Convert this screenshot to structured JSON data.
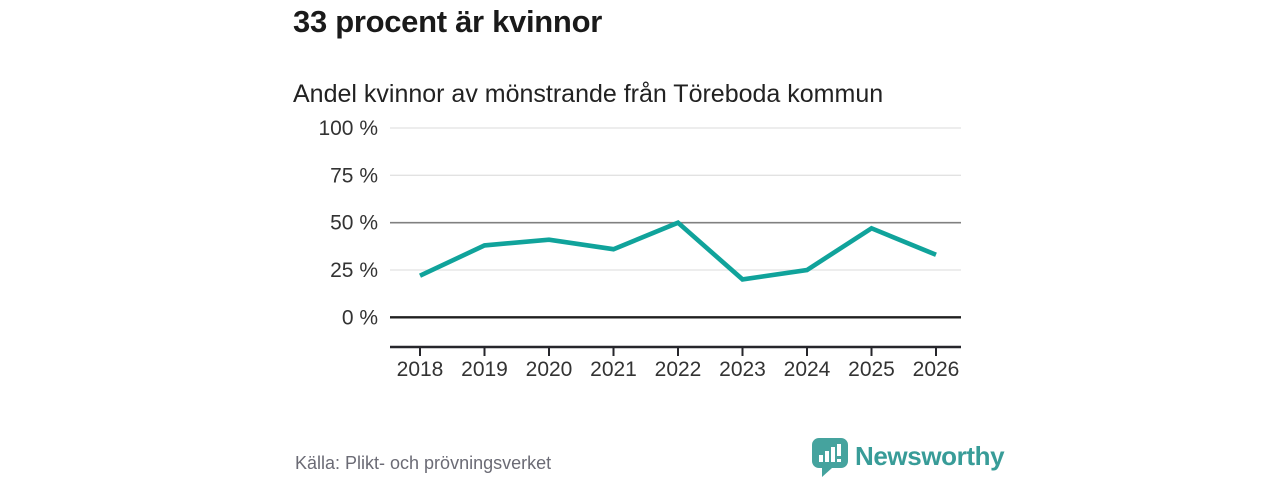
{
  "header": {
    "title": "33 procent är kvinnor",
    "subtitle": "Andel kvinnor av mönstrande från Töreboda kommun"
  },
  "chart_data": {
    "type": "line",
    "categories": [
      "2018",
      "2019",
      "2020",
      "2021",
      "2022",
      "2023",
      "2024",
      "2025",
      "2026"
    ],
    "values": [
      22,
      38,
      41,
      36,
      50,
      20,
      25,
      47,
      33
    ],
    "title": "33 procent är kvinnor",
    "subtitle": "Andel kvinnor av mönstrande från Töreboda kommun",
    "xlabel": "",
    "ylabel": "",
    "ylim": [
      0,
      100
    ],
    "yticks": [
      0,
      25,
      50,
      75,
      100
    ],
    "ytick_labels": [
      "0 %",
      "25 %",
      "50 %",
      "75 %",
      "100 %"
    ],
    "grid": "horizontal",
    "emphasized_gridlines": [
      0,
      50
    ],
    "legend": "none",
    "line_color": "#10a39b",
    "line_width": 4.6
  },
  "footer": {
    "source": "Källa: Plikt- och prövningsverket",
    "brand": "Newsworthy",
    "brand_color": "#389c98",
    "icon_color": "#45a39e"
  }
}
